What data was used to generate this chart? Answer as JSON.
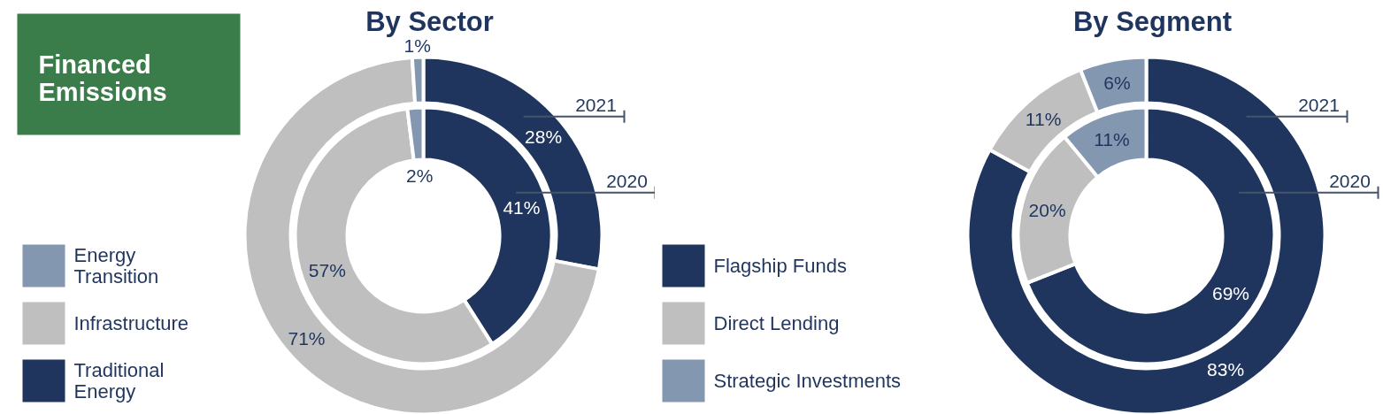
{
  "chart_data": [
    {
      "type": "donut",
      "title": "By Sector",
      "annotations": [
        "Financed Emissions"
      ],
      "legend": "left",
      "categories": [
        "Traditional Energy",
        "Infrastructure",
        "Energy Transition"
      ],
      "colors": [
        "#1f355e",
        "#bfbfbf",
        "#8497b0"
      ],
      "series": [
        {
          "name": "2021",
          "values": [
            28,
            71,
            1
          ],
          "value_labels": [
            "28%",
            "71%",
            "1%"
          ]
        },
        {
          "name": "2020",
          "values": [
            41,
            57,
            2
          ],
          "value_labels": [
            "41%",
            "57%",
            "2%"
          ]
        }
      ]
    },
    {
      "type": "donut",
      "title": "By Segment",
      "legend": "left",
      "categories": [
        "Flagship Funds",
        "Direct Lending",
        "Strategic Investments"
      ],
      "colors": [
        "#1f355e",
        "#bfbfbf",
        "#8497b0"
      ],
      "series": [
        {
          "name": "2021",
          "values": [
            83,
            11,
            6
          ],
          "value_labels": [
            "83%",
            "11%",
            "6%"
          ]
        },
        {
          "name": "2020",
          "values": [
            69,
            20,
            11
          ],
          "value_labels": [
            "69%",
            "20%",
            "11%"
          ]
        }
      ]
    }
  ]
}
